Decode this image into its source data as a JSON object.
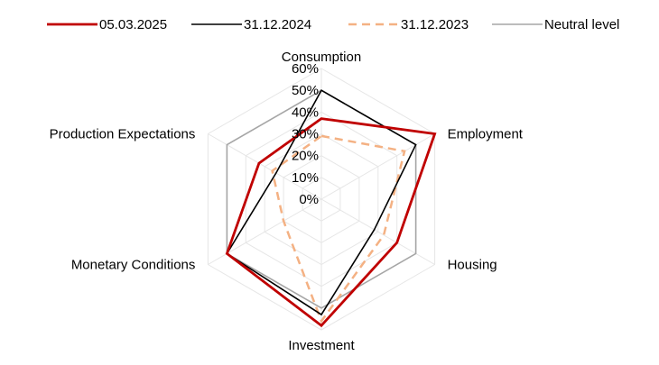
{
  "chart_data": {
    "type": "radar",
    "title": "",
    "axes": [
      "Consumption",
      "Employment",
      "Housing",
      "Investment",
      "Monetary Conditions",
      "Production Expectations"
    ],
    "rlim": [
      0,
      60
    ],
    "ticks": [
      "0%",
      "10%",
      "20%",
      "30%",
      "40%",
      "50%",
      "60%"
    ],
    "tick_values": [
      0,
      10,
      20,
      30,
      40,
      50,
      60
    ],
    "legend_position": "top",
    "series": [
      {
        "name": "05.03.2025",
        "color": "#c00000",
        "dash": "solid",
        "values": [
          37,
          60,
          40,
          58,
          50,
          33
        ]
      },
      {
        "name": "31.12.2024",
        "color": "#000000",
        "dash": "solid",
        "values": [
          50,
          50,
          28,
          53,
          50,
          24
        ]
      },
      {
        "name": "31.12.2023",
        "color": "#f4b183",
        "dash": "dashed",
        "values": [
          29,
          44,
          33,
          56,
          20,
          26
        ]
      },
      {
        "name": "Neutral level",
        "color": "#a6a6a6",
        "dash": "solid",
        "values": [
          50,
          50,
          50,
          50,
          50,
          50
        ]
      }
    ]
  }
}
